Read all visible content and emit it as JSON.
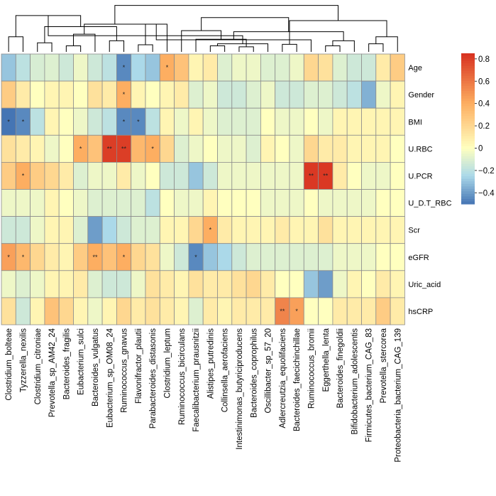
{
  "colors": {
    "high": "#d7301f",
    "mid_high": "#fdae61",
    "mid": "#ffffbf",
    "mid_low": "#abd9e9",
    "low": "#4575b4",
    "grid": "#8c8c8c",
    "dendrogram": "#000000"
  },
  "chart_data": {
    "type": "heatmap",
    "title": "",
    "rows": [
      "Age",
      "Gender",
      "BMI",
      "U.RBC",
      "U.PCR",
      "U_D.T_RBC",
      "Scr",
      "eGFR",
      "Uric_acid",
      "hsCRP"
    ],
    "columns": [
      "Clostridium_bolteae",
      "Tyzzerella_nexilis",
      "Clostridium_citroniae",
      "Prevotella_sp_AM42_24",
      "Bacteroides_fragilis",
      "Eubacterium_sulci",
      "Bacteroides_vulgatus",
      "Eubacterium_sp_OM08_24",
      "Ruminococcus_gnavus",
      "Flavonifractor_plautii",
      "Parabacteroides_distasonis",
      "Clostridium_leptum",
      "Ruminococcus_bicirculans",
      "Faecalibacterium_prausnitzii",
      "Alistipes_putredinis",
      "Collinsella_aerofaciens",
      "Intestinimonas_butyriciproducens",
      "Bacteroides_coprophilus",
      "Oscillibacter_sp_57_20",
      "Adlercreutzia_equolifaciens",
      "Bacteroides_faecichinchillae",
      "Ruminococcus_bromii",
      "Eggerthella_lenta",
      "Bacteroides_finegoldii",
      "Bifidobacterium_adolescentis",
      "Firmicutes_bacterium_CAG_83",
      "Prevotella_stercorea",
      "Proteobacteria_bacterium_CAG_139"
    ],
    "values": [
      [
        -0.3,
        -0.2,
        -0.12,
        -0.1,
        -0.15,
        -0.05,
        -0.15,
        -0.2,
        -0.45,
        -0.25,
        -0.3,
        0.4,
        0.3,
        0.05,
        0.1,
        -0.1,
        -0.05,
        -0.05,
        -0.1,
        -0.1,
        -0.05,
        0.2,
        0.15,
        -0.1,
        -0.15,
        -0.15,
        0.1,
        0.25
      ],
      [
        0.25,
        0.1,
        0.0,
        0.05,
        0.05,
        0.0,
        0.15,
        0.1,
        0.4,
        0.05,
        0.0,
        0.05,
        0.1,
        -0.1,
        -0.05,
        -0.15,
        -0.15,
        -0.1,
        -0.05,
        -0.15,
        -0.15,
        -0.1,
        -0.1,
        -0.15,
        -0.2,
        -0.35,
        -0.05,
        0.05
      ],
      [
        -0.5,
        -0.45,
        -0.2,
        0.05,
        0.0,
        -0.05,
        -0.15,
        -0.2,
        -0.45,
        -0.45,
        -0.2,
        0.05,
        -0.05,
        0.05,
        -0.05,
        -0.1,
        -0.1,
        -0.1,
        0.0,
        -0.05,
        -0.05,
        0.0,
        -0.05,
        0.05,
        0.05,
        0.05,
        0.05,
        0.05
      ],
      [
        0.15,
        0.1,
        0.05,
        -0.05,
        0.0,
        0.4,
        0.3,
        0.8,
        0.8,
        0.35,
        0.4,
        0.2,
        -0.1,
        -0.05,
        0.0,
        -0.05,
        -0.05,
        -0.1,
        0.05,
        0.0,
        -0.05,
        0.2,
        0.1,
        0.1,
        0.05,
        0.05,
        0.05,
        0.0
      ],
      [
        0.25,
        0.4,
        0.25,
        0.2,
        0.1,
        -0.1,
        -0.05,
        -0.05,
        0.1,
        -0.05,
        0.0,
        -0.15,
        -0.15,
        -0.3,
        -0.15,
        -0.05,
        -0.05,
        -0.05,
        -0.05,
        -0.05,
        -0.05,
        0.82,
        0.82,
        0.1,
        0.0,
        -0.05,
        -0.05,
        0.0
      ],
      [
        -0.05,
        -0.05,
        -0.05,
        0.05,
        0.0,
        -0.05,
        -0.1,
        -0.1,
        -0.1,
        -0.1,
        -0.2,
        0.0,
        -0.05,
        -0.05,
        0.05,
        0.0,
        0.0,
        0.0,
        -0.05,
        -0.05,
        -0.05,
        0.0,
        -0.05,
        -0.05,
        -0.05,
        -0.05,
        0.0,
        0.0
      ],
      [
        -0.15,
        -0.15,
        -0.05,
        0.05,
        0.05,
        -0.1,
        -0.4,
        -0.25,
        -0.15,
        -0.1,
        -0.1,
        0.05,
        0.05,
        0.2,
        0.4,
        0.1,
        0.05,
        0.05,
        0.05,
        0.1,
        0.05,
        0.05,
        0.15,
        0.05,
        0.05,
        0.05,
        0.05,
        0.05
      ],
      [
        0.45,
        0.35,
        0.2,
        0.1,
        0.05,
        0.25,
        0.4,
        0.3,
        0.4,
        0.2,
        0.15,
        -0.05,
        -0.15,
        -0.45,
        -0.3,
        -0.25,
        -0.15,
        -0.1,
        -0.1,
        -0.1,
        -0.1,
        -0.1,
        -0.1,
        -0.05,
        -0.05,
        -0.05,
        0.0,
        0.0
      ],
      [
        -0.05,
        -0.1,
        -0.05,
        0.05,
        0.05,
        0.1,
        -0.1,
        -0.15,
        -0.15,
        -0.05,
        0.15,
        0.1,
        0.05,
        0.15,
        0.1,
        0.1,
        0.15,
        0.2,
        0.1,
        0.0,
        0.0,
        -0.3,
        -0.4,
        -0.05,
        0.05,
        0.0,
        0.1,
        0.05
      ],
      [
        0.15,
        -0.15,
        0.05,
        0.3,
        0.2,
        0.05,
        -0.05,
        0.05,
        0.2,
        0.1,
        0.15,
        0.1,
        0.05,
        -0.1,
        0.1,
        0.05,
        0.1,
        0.1,
        0.1,
        0.55,
        0.45,
        0.0,
        0.0,
        0.1,
        0.1,
        0.1,
        0.25,
        0.1
      ]
    ],
    "significance": [
      [
        "",
        "",
        "",
        "",
        "",
        "",
        "",
        "",
        "*",
        "",
        "",
        "*",
        "",
        "",
        "",
        "",
        "",
        "",
        "",
        "",
        "",
        "",
        "",
        "",
        "",
        "",
        "",
        ""
      ],
      [
        "",
        "",
        "",
        "",
        "",
        "",
        "",
        "",
        "*",
        "",
        "",
        "",
        "",
        "",
        "",
        "",
        "",
        "",
        "",
        "",
        "",
        "",
        "",
        "",
        "",
        "",
        "",
        ""
      ],
      [
        "*",
        "*",
        "",
        "",
        "",
        "",
        "",
        "",
        "*",
        "*",
        "",
        "",
        "",
        "",
        "",
        "",
        "",
        "",
        "",
        "",
        "",
        "",
        "",
        "",
        "",
        "",
        "",
        ""
      ],
      [
        "",
        "",
        "",
        "",
        "",
        "*",
        "",
        "**",
        "**",
        "",
        "*",
        "",
        "",
        "",
        "",
        "",
        "",
        "",
        "",
        "",
        "",
        "",
        "",
        "",
        "",
        "",
        "",
        ""
      ],
      [
        "",
        "*",
        "",
        "",
        "",
        "",
        "",
        "",
        "",
        "",
        "",
        "",
        "",
        "",
        "",
        "",
        "",
        "",
        "",
        "",
        "",
        "**",
        "**",
        "",
        "",
        "",
        "",
        ""
      ],
      [
        "",
        "",
        "",
        "",
        "",
        "",
        "",
        "",
        "",
        "",
        "",
        "",
        "",
        "",
        "",
        "",
        "",
        "",
        "",
        "",
        "",
        "",
        "",
        "",
        "",
        "",
        "",
        ""
      ],
      [
        "",
        "",
        "",
        "",
        "",
        "",
        "",
        "",
        "",
        "",
        "",
        "",
        "",
        "",
        "*",
        "",
        "",
        "",
        "",
        "",
        "",
        "",
        "",
        "",
        "",
        "",
        "",
        ""
      ],
      [
        "*",
        "*",
        "",
        "",
        "",
        "",
        "**",
        "",
        "*",
        "",
        "",
        "",
        "",
        "*",
        "",
        "",
        "",
        "",
        "",
        "",
        "",
        "",
        "",
        "",
        "",
        "",
        "",
        ""
      ],
      [
        "",
        "",
        "",
        "",
        "",
        "",
        "",
        "",
        "",
        "",
        "",
        "",
        "",
        "",
        "",
        "",
        "",
        "",
        "",
        "",
        "",
        "",
        "",
        "",
        "",
        "",
        "",
        ""
      ],
      [
        "",
        "",
        "",
        "",
        "",
        "",
        "",
        "",
        "",
        "",
        "",
        "",
        "",
        "",
        "",
        "",
        "",
        "",
        "",
        "**",
        "*",
        "",
        "",
        "",
        "",
        "",
        "",
        ""
      ]
    ],
    "colorbar": {
      "min": -0.5,
      "max": 0.85,
      "ticks": [
        0.8,
        0.6,
        0.4,
        0.2,
        0,
        -0.2,
        -0.4
      ],
      "tick_labels": [
        "0.8",
        "0.6",
        "0.4",
        "0.2",
        "0",
        "−0.2",
        "−0.4"
      ]
    },
    "dendrogram": {
      "merges": [
        [
          0,
          1,
          0.3
        ],
        [
          2,
          3,
          0.18
        ],
        [
          4,
          5,
          0.12
        ],
        [
          7,
          8,
          0.22
        ],
        [
          6,
          30,
          0.35
        ],
        [
          9,
          10,
          0.14
        ],
        [
          29,
          31,
          0.5
        ],
        [
          32,
          33,
          0.55
        ],
        [
          28,
          34,
          0.72
        ],
        [
          14,
          15,
          0.12
        ],
        [
          16,
          17,
          0.1
        ],
        [
          37,
          18,
          0.16
        ],
        [
          13,
          38,
          0.25
        ],
        [
          36,
          39,
          0.32
        ],
        [
          12,
          40,
          0.42
        ],
        [
          11,
          41,
          0.55
        ],
        [
          19,
          20,
          0.15
        ],
        [
          43,
          21,
          0.24
        ],
        [
          22,
          23,
          0.12
        ],
        [
          25,
          26,
          0.16
        ],
        [
          24,
          46,
          0.22
        ],
        [
          27,
          47,
          0.3
        ],
        [
          45,
          48,
          0.4
        ],
        [
          44,
          49,
          0.62
        ],
        [
          42,
          50,
          0.68
        ],
        [
          35,
          51,
          0.92
        ]
      ]
    }
  }
}
